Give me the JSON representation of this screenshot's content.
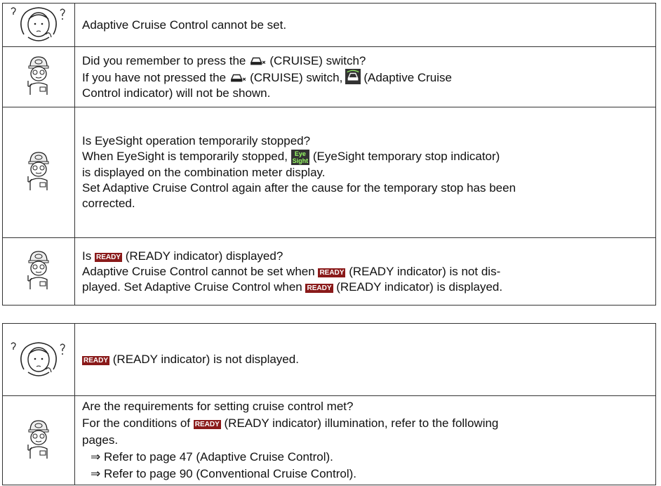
{
  "ready_badge": "READY",
  "eyesight_badge": [
    "Eye",
    "Sight"
  ],
  "table_1": {
    "question": "Adaptive Cruise Control cannot be set.",
    "answers": [
      [
        [
          "Did you remember to press the",
          "(CRUISE) switch?"
        ],
        [
          "If you have not pressed the",
          "(CRUISE) switch,",
          "(Adaptive Cruise"
        ],
        [
          "Control indicator) will not be shown."
        ]
      ],
      [
        [
          "Is EyeSight operation temporarily stopped?"
        ],
        [
          "When EyeSight is temporarily stopped,",
          "(EyeSight temporary stop indicator)"
        ],
        [
          "is displayed on the combination meter display."
        ],
        [
          "Set Adaptive Cruise Control again after the cause for the temporary stop has been"
        ],
        [
          "corrected."
        ]
      ],
      [
        [
          "Is",
          "(READY indicator) displayed?"
        ],
        [
          "Adaptive Cruise Control cannot be set when",
          "(READY indicator) is not dis-"
        ],
        [
          "played. Set Adaptive Cruise Control when",
          "(READY indicator) is displayed."
        ]
      ]
    ]
  },
  "table_2": {
    "question": "(READY indicator) is not displayed.",
    "answers": [
      [
        [
          "Are the requirements for setting cruise control met?"
        ],
        [
          "For the conditions of",
          "(READY indicator) illumination, refer to the following"
        ],
        [
          "pages."
        ],
        [
          "⇒ Refer to page 47 (Adaptive Cruise Control)."
        ],
        [
          "⇒ Refer to page 90 (Conventional Cruise Control)."
        ]
      ]
    ]
  }
}
